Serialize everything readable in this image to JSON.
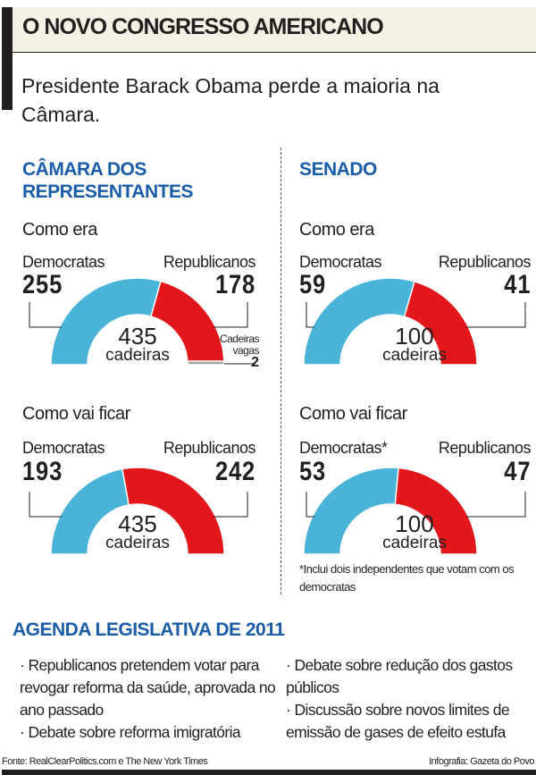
{
  "header": {
    "title": "O NOVO CONGRESSO AMERICANO",
    "subtitle": "Presidente Barack Obama perde a maioria na Câmara."
  },
  "colors": {
    "democrats": "#4ab3d8",
    "republicans": "#e2161b",
    "vacant": "#a3a3a3",
    "section_title": "#1b5ca8"
  },
  "chart_data": [
    {
      "type": "pie",
      "variant": "semicircle",
      "section": "CÂMARA DOS REPRESENTANTES",
      "subtitle": "Como era",
      "total": "435",
      "total_label": "cadeiras",
      "categories": [
        "Democratas",
        "Republicanos",
        "Cadeiras vagas"
      ],
      "values": [
        255,
        178,
        2
      ]
    },
    {
      "type": "pie",
      "variant": "semicircle",
      "section": "CÂMARA DOS REPRESENTANTES",
      "subtitle": "Como vai ficar",
      "total": "435",
      "total_label": "cadeiras",
      "categories": [
        "Democratas",
        "Republicanos"
      ],
      "values": [
        193,
        242
      ]
    },
    {
      "type": "pie",
      "variant": "semicircle",
      "section": "SENADO",
      "subtitle": "Como era",
      "total": "100",
      "total_label": "cadeiras",
      "categories": [
        "Democratas",
        "Republicanos"
      ],
      "values": [
        59,
        41
      ]
    },
    {
      "type": "pie",
      "variant": "semicircle",
      "section": "SENADO",
      "subtitle": "Como vai ficar",
      "total": "100",
      "total_label": "cadeiras",
      "categories": [
        "Democratas*",
        "Republicanos"
      ],
      "values": [
        53,
        47
      ],
      "footnote": "*Inclui dois independentes que votam com os democratas"
    }
  ],
  "sections": {
    "house": "CÂMARA DOS REPRESENTANTES",
    "senate": "SENADO",
    "vacant_label": "Cadeiras vagas"
  },
  "agenda": {
    "title": "AGENDA LEGISLATIVA DE 2011",
    "items": [
      "· Republicanos pretendem votar para revogar reforma da saúde, aprovada no ano passado",
      "· Debate sobre reforma imigratória",
      "· Debate sobre redução dos gastos públicos",
      "· Discussão sobre novos limites de emissão de gases de efeito estufa"
    ]
  },
  "footer": {
    "source": "Fonte: RealClearPolitics.com e The New York Times",
    "credit": "Infografia: Gazeta do Povo"
  }
}
